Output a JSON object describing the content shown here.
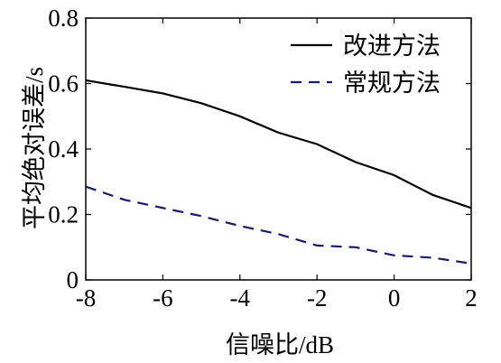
{
  "chart_data": {
    "type": "line",
    "title": "",
    "xlabel": "信噪比/dB",
    "ylabel": "平均绝对误差/s",
    "xlim": [
      -8,
      2
    ],
    "ylim": [
      0,
      0.8
    ],
    "x_ticks": [
      "-8",
      "-6",
      "-4",
      "-2",
      "0",
      "2"
    ],
    "y_ticks": [
      "0",
      "0.2",
      "0.4",
      "0.6",
      "0.8"
    ],
    "grid": false,
    "legend_position": "top-right",
    "x": [
      -8,
      -7,
      -6,
      -5,
      -4,
      -3,
      -2,
      -1,
      0,
      1,
      2
    ],
    "series": [
      {
        "name": "改进方法",
        "color": "#000000",
        "dash": "solid",
        "values": [
          0.61,
          0.59,
          0.57,
          0.54,
          0.5,
          0.45,
          0.415,
          0.36,
          0.32,
          0.26,
          0.22
        ]
      },
      {
        "name": "常规方法",
        "color": "#1a1a6e",
        "dash": "dashed",
        "values": [
          0.285,
          0.245,
          0.22,
          0.195,
          0.165,
          0.14,
          0.105,
          0.1,
          0.075,
          0.068,
          0.05
        ]
      }
    ]
  }
}
